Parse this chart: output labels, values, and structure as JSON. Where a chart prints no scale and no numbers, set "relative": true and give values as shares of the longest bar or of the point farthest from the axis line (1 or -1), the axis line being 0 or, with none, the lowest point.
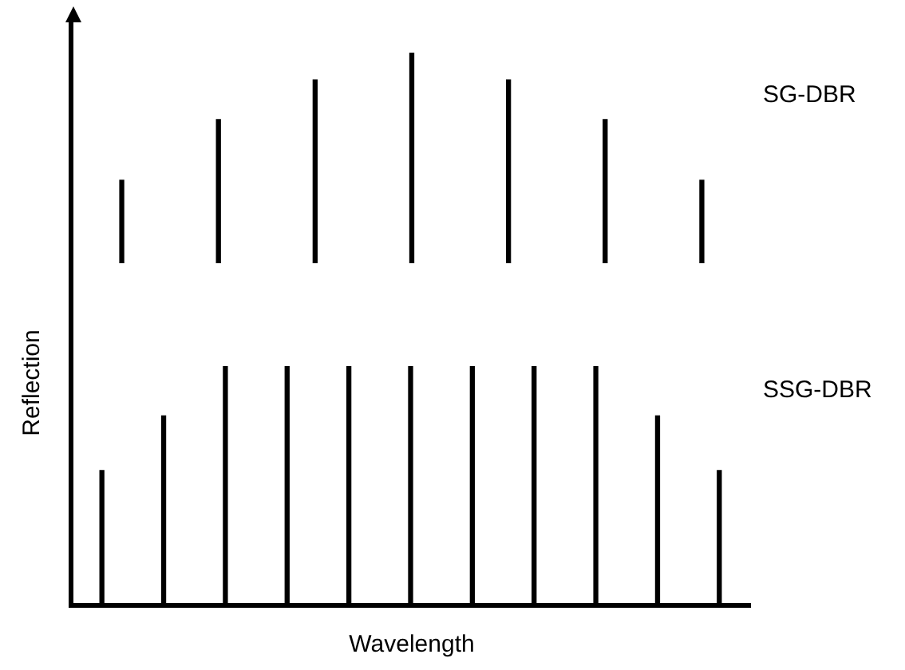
{
  "chart_data": [
    {
      "type": "bar",
      "relative": true,
      "categories": [
        null,
        null,
        null,
        null,
        null,
        null,
        null
      ],
      "series": [
        {
          "name": "SG-DBR",
          "color": "#000000",
          "values": [
            0.394,
            0.682,
            0.871,
            1,
            0.871,
            0.682,
            0.394
          ]
        }
      ]
    },
    {
      "type": "bar",
      "relative": true,
      "xlabel": "Wavelength",
      "ylabel": "Reflection",
      "categories": [
        null,
        null,
        null,
        null,
        null,
        null,
        null,
        null,
        null,
        null,
        null
      ],
      "series": [
        {
          "name": "SSG-DBR",
          "color": "#000000",
          "values": [
            0.565,
            0.794,
            1,
            1,
            1,
            1,
            1,
            1,
            1,
            0.794,
            0.565
          ]
        }
      ]
    }
  ]
}
